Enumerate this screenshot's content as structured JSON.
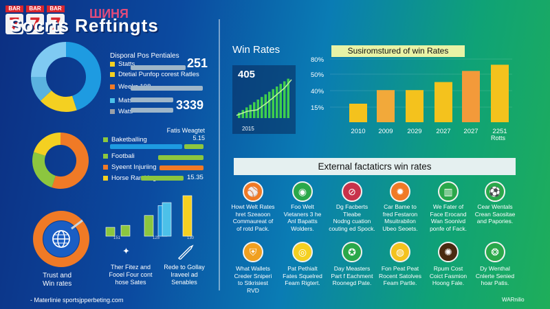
{
  "header": {
    "logo_bar": "BAR",
    "logo_digits": [
      "7",
      "7",
      "7"
    ],
    "logo_word": "ШИНЯ",
    "title": "Socrts Reftingts"
  },
  "left_top": {
    "heading": "Disporal Pos Pentiales",
    "rows": [
      {
        "label": "Statts",
        "value": "251",
        "color": "#f4d021"
      },
      {
        "label": "Dtetial Punfop corest Ratles",
        "value": "",
        "color": "#f4d021"
      },
      {
        "label": "Weeks 198",
        "value": "",
        "color": "#f07a26"
      },
      {
        "label": "Mats",
        "value": "3339",
        "color": "#4cc1e9"
      },
      {
        "label": "Wats",
        "value": "",
        "color": "#9aa0a8"
      }
    ],
    "donut": [
      {
        "value": 45,
        "color": "#1e9be1"
      },
      {
        "value": 18,
        "color": "#f4d021"
      },
      {
        "value": 12,
        "color": "#5ab2df"
      },
      {
        "value": 25,
        "color": "#7fcaf2"
      }
    ]
  },
  "left_mid": {
    "heading": "Fatis Weagtet 5.15",
    "rows": [
      {
        "label": "Baketballing",
        "value": "",
        "color": "#8cc63f"
      },
      {
        "label": "Footbali",
        "value": "",
        "color": "#8cc63f"
      },
      {
        "label": "Syeent Injuriing",
        "value": "",
        "color": "#f07a26"
      },
      {
        "label": "Horse Ramking",
        "value": "15.35",
        "color": "#f4d021"
      }
    ],
    "donut": [
      {
        "value": 55,
        "color": "#f07a26"
      },
      {
        "value": 25,
        "color": "#8cc63f"
      },
      {
        "value": 20,
        "color": "#f4d021"
      }
    ]
  },
  "left_bottom": {
    "ring_label": "Trust and\nWin rates",
    "bar_labels": [
      "151",
      "125",
      "130"
    ],
    "caption_left": "Ther Fitez and\nFooel Four cont\nhose Sates",
    "caption_right": "Rede to Gollay\nIraveel ad\nSenables"
  },
  "win_rates": {
    "heading": "Win Rates",
    "value": "405",
    "year": "2015"
  },
  "right_chart": {
    "title": "Susiromstured of win Rates",
    "y_ticks": [
      "80%",
      "50%",
      "40%",
      "15%"
    ],
    "bar_labels": [
      "2010",
      "2009",
      "2029",
      "2027",
      "2027",
      "2251"
    ],
    "extra_label": "Rotts"
  },
  "factors": {
    "banner": "External factaticrs win rates",
    "row1": [
      {
        "icon": "baseball-icon",
        "text": "Howt Welt Rates\nhret Szeaoon\nCommaureat of\nof rotd Pack."
      },
      {
        "icon": "globe-icon",
        "text": "Foo Welt\nVietaners 3 he\nAnl Bapatts\nWolders."
      },
      {
        "icon": "no-sign-icon",
        "text": "Dg Facberts\nTleabe\nNodng cuation\ncouting ed Spock."
      },
      {
        "icon": "flame-icon",
        "text": "Car Bame to\nfred Festaron\nMsuitrabilon\nUbeo Seoets."
      },
      {
        "icon": "chart-icon",
        "text": "We Fater of\nFace Erocand\nWan Soonivd\nponfe of Fack."
      },
      {
        "icon": "soccer-icon",
        "text": "Cear Wentals\nCrean Saositae\nand Papories."
      }
    ],
    "row2": [
      {
        "icon": "shield-icon",
        "text": "What Wallets\nCreder Sniperi\nto Stkrisiest\nRVD"
      },
      {
        "icon": "target-icon",
        "text": "Pat Pethialt\nFates Squelred\nFeam Rigtert."
      },
      {
        "icon": "medal-icon",
        "text": "Day Measters\nPart f Eachment\nRoonegd Pate."
      },
      {
        "icon": "coin-icon",
        "text": "Fon Peat Peat\nRocent Satolves\nFeam Partle."
      },
      {
        "icon": "award-icon",
        "text": "Rpum Cost\nCoict Fasmion\nHoong Fale."
      },
      {
        "icon": "badge-icon",
        "text": "Dy Wenthal\nCnlerte Senied\nhoar Patis."
      }
    ]
  },
  "footer": {
    "left": "- Materlinie sportsjpperbeting.com",
    "right": "WARnilio"
  }
}
